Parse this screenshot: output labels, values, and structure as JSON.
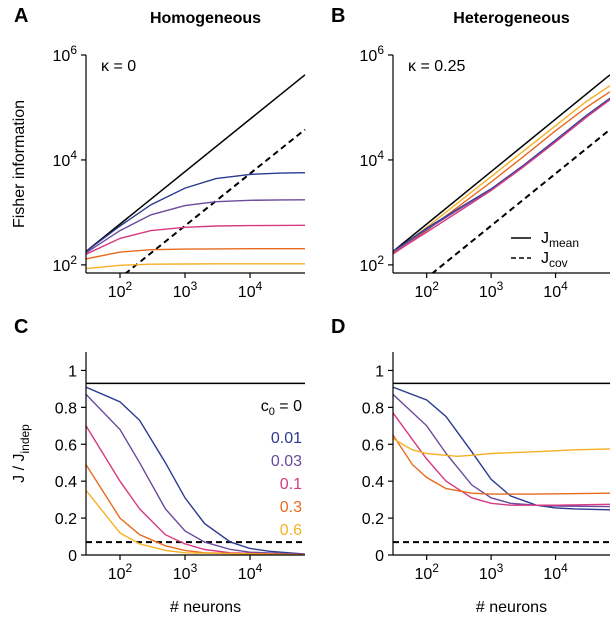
{
  "colors": {
    "c0_0": "#000000",
    "c0_0_01": "#2b3a8f",
    "c0_0_03": "#6a4a9c",
    "c0_0_1": "#d63a82",
    "c0_0_3": "#e86a1e",
    "c0_0_6": "#f5b025"
  },
  "chart_data": [
    {
      "panel": "A",
      "title": "Homogeneous",
      "type": "line",
      "xscale": "log",
      "yscale": "log",
      "xlim": [
        30,
        70000
      ],
      "ylim": [
        70,
        1000000
      ],
      "xticks": [
        "10^2",
        "10^3",
        "10^4"
      ],
      "yticks": [
        "10^2",
        "10^4",
        "10^6"
      ],
      "xlabel": "",
      "ylabel": "Fisher information",
      "annotation": "κ = 0",
      "series": [
        {
          "style": "solid",
          "color": "#000000",
          "x": [
            30,
            70000
          ],
          "y": [
            180,
            420000
          ]
        },
        {
          "style": "dashed",
          "color": "#000000",
          "x": [
            30,
            70000
          ],
          "y": [
            17,
            38000
          ]
        },
        {
          "style": "solid",
          "color": "#2b3a8f",
          "x": [
            30,
            100,
            300,
            1000,
            3000,
            10000,
            30000,
            70000
          ],
          "y": [
            180,
            550,
            1400,
            2900,
            4400,
            5300,
            5600,
            5700
          ]
        },
        {
          "style": "solid",
          "color": "#6a4a9c",
          "x": [
            30,
            100,
            300,
            1000,
            3000,
            10000,
            30000,
            70000
          ],
          "y": [
            170,
            450,
            900,
            1350,
            1600,
            1700,
            1730,
            1740
          ]
        },
        {
          "style": "solid",
          "color": "#d63a82",
          "x": [
            30,
            100,
            300,
            1000,
            3000,
            10000,
            30000,
            70000
          ],
          "y": [
            160,
            320,
            450,
            520,
            550,
            560,
            565,
            567
          ]
        },
        {
          "style": "solid",
          "color": "#e86a1e",
          "x": [
            30,
            100,
            300,
            1000,
            3000,
            10000,
            30000,
            70000
          ],
          "y": [
            130,
            175,
            195,
            200,
            202,
            203,
            203,
            203
          ]
        },
        {
          "style": "solid",
          "color": "#f5b025",
          "x": [
            30,
            100,
            300,
            1000,
            3000,
            10000,
            30000,
            70000
          ],
          "y": [
            85,
            98,
            103,
            104,
            105,
            105,
            105,
            105
          ]
        }
      ]
    },
    {
      "panel": "B",
      "title": "Heterogeneous",
      "type": "line",
      "xscale": "log",
      "yscale": "log",
      "xlim": [
        30,
        70000
      ],
      "ylim": [
        70,
        1000000
      ],
      "xticks": [
        "10^2",
        "10^3",
        "10^4"
      ],
      "yticks": [
        "10^2",
        "10^4",
        "10^6"
      ],
      "xlabel": "",
      "ylabel": "",
      "annotation": "κ = 0.25",
      "legend": {
        "placement": "bottom-right",
        "entries": [
          {
            "label": "J",
            "sub": "mean",
            "style": "solid"
          },
          {
            "label": "J",
            "sub": "cov",
            "style": "dashed"
          }
        ]
      },
      "series": [
        {
          "style": "solid",
          "color": "#000000",
          "x": [
            30,
            70000
          ],
          "y": [
            180,
            420000
          ]
        },
        {
          "style": "dashed",
          "color": "#000000",
          "x": [
            30,
            70000
          ],
          "y": [
            17,
            38000
          ]
        },
        {
          "style": "solid",
          "color": "#f5b025",
          "x": [
            30,
            100,
            300,
            1000,
            3000,
            10000,
            30000,
            70000
          ],
          "y": [
            170,
            520,
            1500,
            4800,
            14000,
            45000,
            130000,
            260000
          ]
        },
        {
          "style": "solid",
          "color": "#e86a1e",
          "x": [
            30,
            100,
            300,
            1000,
            3000,
            10000,
            30000,
            70000
          ],
          "y": [
            160,
            450,
            1250,
            3800,
            11000,
            36000,
            100000,
            200000
          ]
        },
        {
          "style": "solid",
          "color": "#2b3a8f",
          "x": [
            30,
            100,
            300,
            1000,
            3000,
            10000,
            30000,
            70000
          ],
          "y": [
            180,
            500,
            1150,
            2800,
            7500,
            24000,
            70000,
            150000
          ]
        },
        {
          "style": "solid",
          "color": "#6a4a9c",
          "x": [
            30,
            100,
            300,
            1000,
            3000,
            10000,
            30000,
            70000
          ],
          "y": [
            175,
            470,
            1100,
            2700,
            7200,
            23000,
            67000,
            145000
          ]
        },
        {
          "style": "solid",
          "color": "#d63a82",
          "x": [
            30,
            100,
            300,
            1000,
            3000,
            10000,
            30000,
            70000
          ],
          "y": [
            165,
            420,
            1000,
            2600,
            7000,
            22000,
            65000,
            140000
          ]
        }
      ]
    },
    {
      "panel": "C",
      "type": "line",
      "xscale": "log",
      "yscale": "linear",
      "xlim": [
        30,
        70000
      ],
      "ylim": [
        0,
        1.1
      ],
      "xticks": [
        "10^2",
        "10^3",
        "10^4"
      ],
      "yticks": [
        "0",
        "0.2",
        "0.4",
        "0.6",
        "0.8",
        "1"
      ],
      "xlabel": "# neurons",
      "ylabel": "J / J_indep",
      "legend": {
        "placement": "right",
        "title": "c0 = 0",
        "entries": [
          "0.01",
          "0.03",
          "0.1",
          "0.3",
          "0.6"
        ]
      },
      "series": [
        {
          "style": "solid",
          "color": "#000000",
          "x": [
            30,
            70000
          ],
          "y": [
            0.93,
            0.93
          ]
        },
        {
          "style": "dashed",
          "color": "#000000",
          "x": [
            30,
            70000
          ],
          "y": [
            0.07,
            0.07
          ]
        },
        {
          "style": "solid",
          "color": "#2b3a8f",
          "x": [
            30,
            100,
            200,
            500,
            1000,
            2000,
            5000,
            10000,
            20000,
            70000
          ],
          "y": [
            0.91,
            0.83,
            0.73,
            0.5,
            0.31,
            0.17,
            0.07,
            0.035,
            0.02,
            0.005
          ]
        },
        {
          "style": "solid",
          "color": "#6a4a9c",
          "x": [
            30,
            100,
            200,
            500,
            1000,
            2000,
            5000,
            10000,
            70000
          ],
          "y": [
            0.87,
            0.68,
            0.5,
            0.25,
            0.13,
            0.07,
            0.03,
            0.015,
            0.003
          ]
        },
        {
          "style": "solid",
          "color": "#d63a82",
          "x": [
            30,
            100,
            200,
            500,
            1000,
            2000,
            5000,
            70000
          ],
          "y": [
            0.7,
            0.4,
            0.25,
            0.11,
            0.06,
            0.03,
            0.012,
            0.002
          ]
        },
        {
          "style": "solid",
          "color": "#e86a1e",
          "x": [
            30,
            100,
            200,
            500,
            1000,
            2000,
            70000
          ],
          "y": [
            0.49,
            0.2,
            0.11,
            0.05,
            0.025,
            0.012,
            0.001
          ]
        },
        {
          "style": "solid",
          "color": "#f5b025",
          "x": [
            30,
            100,
            200,
            500,
            1000,
            70000
          ],
          "y": [
            0.35,
            0.12,
            0.06,
            0.025,
            0.012,
            0.001
          ]
        }
      ]
    },
    {
      "panel": "D",
      "type": "line",
      "xscale": "log",
      "yscale": "linear",
      "xlim": [
        30,
        70000
      ],
      "ylim": [
        0,
        1.1
      ],
      "xticks": [
        "10^2",
        "10^3",
        "10^4"
      ],
      "yticks": [
        "0",
        "0.2",
        "0.4",
        "0.6",
        "0.8",
        "1"
      ],
      "xlabel": "# neurons",
      "ylabel": "",
      "series": [
        {
          "style": "solid",
          "color": "#000000",
          "x": [
            30,
            70000
          ],
          "y": [
            0.93,
            0.93
          ]
        },
        {
          "style": "dashed",
          "color": "#000000",
          "x": [
            30,
            70000
          ],
          "y": [
            0.07,
            0.07
          ]
        },
        {
          "style": "solid",
          "color": "#2b3a8f",
          "x": [
            30,
            100,
            200,
            500,
            1000,
            2000,
            5000,
            10000,
            20000,
            70000
          ],
          "y": [
            0.91,
            0.84,
            0.75,
            0.56,
            0.41,
            0.32,
            0.27,
            0.255,
            0.25,
            0.245
          ]
        },
        {
          "style": "solid",
          "color": "#6a4a9c",
          "x": [
            30,
            100,
            200,
            500,
            1000,
            2000,
            5000,
            10000,
            70000
          ],
          "y": [
            0.87,
            0.7,
            0.55,
            0.38,
            0.31,
            0.28,
            0.27,
            0.265,
            0.262
          ]
        },
        {
          "style": "solid",
          "color": "#d63a82",
          "x": [
            30,
            100,
            200,
            500,
            1000,
            2000,
            5000,
            10000,
            70000
          ],
          "y": [
            0.77,
            0.52,
            0.4,
            0.31,
            0.28,
            0.27,
            0.27,
            0.27,
            0.275
          ]
        },
        {
          "style": "solid",
          "color": "#e86a1e",
          "x": [
            30,
            60,
            100,
            200,
            500,
            1000,
            2000,
            5000,
            70000
          ],
          "y": [
            0.65,
            0.49,
            0.42,
            0.36,
            0.335,
            0.33,
            0.33,
            0.33,
            0.335
          ]
        },
        {
          "style": "solid",
          "color": "#f5b025",
          "x": [
            30,
            60,
            100,
            200,
            300,
            500,
            1000,
            5000,
            20000,
            70000
          ],
          "y": [
            0.63,
            0.57,
            0.55,
            0.54,
            0.535,
            0.54,
            0.55,
            0.56,
            0.57,
            0.575
          ]
        }
      ]
    }
  ]
}
